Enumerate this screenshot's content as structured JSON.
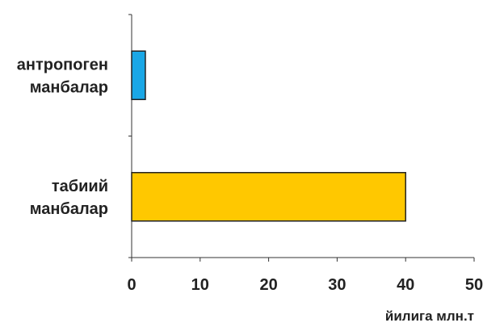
{
  "chart_data": {
    "type": "bar",
    "orientation": "horizontal",
    "categories": [
      [
        "антропоген",
        "манбалар"
      ],
      [
        "табиий",
        "манбалар"
      ]
    ],
    "values": [
      2,
      40
    ],
    "colors": [
      "#1aa7e6",
      "#ffc800"
    ],
    "xlabel": "йилига млн.т",
    "xlim": [
      0,
      50
    ],
    "xticks": [
      0,
      10,
      20,
      30,
      40,
      50
    ],
    "grid": false
  }
}
